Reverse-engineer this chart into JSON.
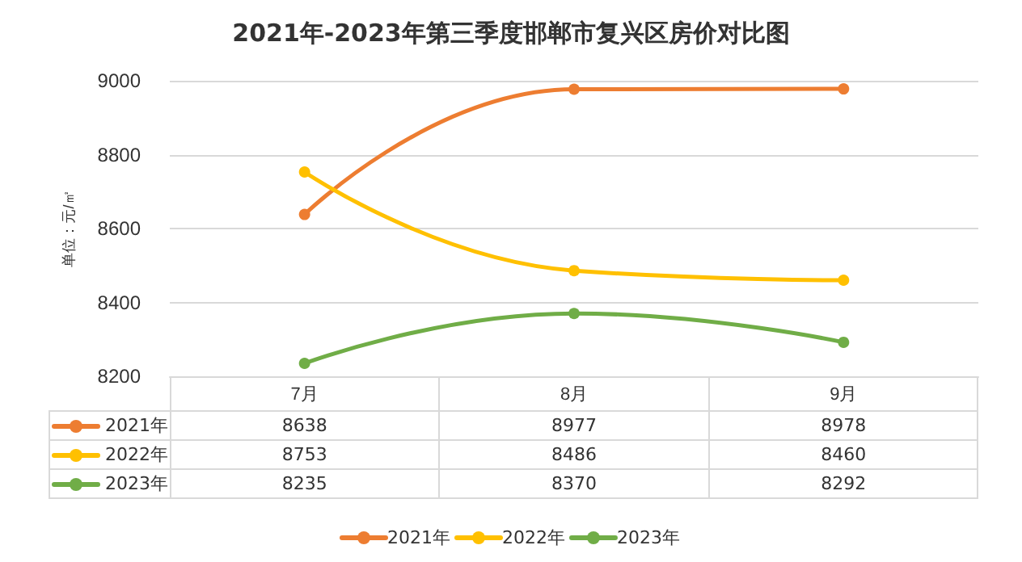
{
  "chart_data": {
    "type": "line",
    "title": "2021年-2023年第三季度邯郸市复兴区房价对比图",
    "ylabel": "单位：元/㎡",
    "categories": [
      "7月",
      "8月",
      "9月"
    ],
    "series": [
      {
        "name": "2021年",
        "color": "#ed7d31",
        "values": [
          8638,
          8977,
          8978
        ]
      },
      {
        "name": "2022年",
        "color": "#ffc000",
        "values": [
          8753,
          8486,
          8460
        ]
      },
      {
        "name": "2023年",
        "color": "#70ad47",
        "values": [
          8235,
          8370,
          8292
        ]
      }
    ],
    "ylim": [
      8200,
      9000
    ],
    "yticks": [
      8200,
      8400,
      8600,
      8800,
      9000
    ],
    "grid": "y",
    "legend": "bottom",
    "marker": "circle",
    "line_style": "solid",
    "data_labels": true
  }
}
